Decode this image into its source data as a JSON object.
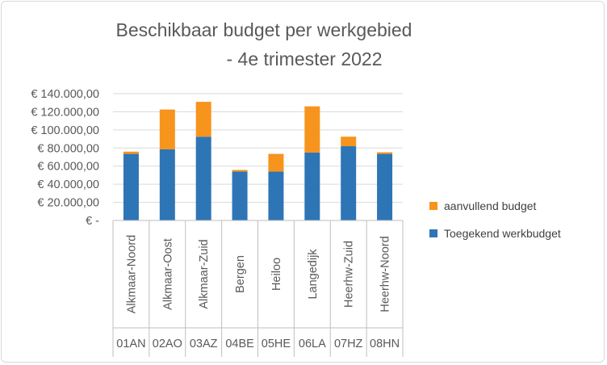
{
  "chart_data": {
    "type": "bar",
    "stacked": true,
    "title_line1": "Beschikbaar budget per werkgebied",
    "title_line2": "- 4e trimester 2022",
    "categories": [
      {
        "name": "Alkmaar-Noord",
        "code": "01AN"
      },
      {
        "name": "Alkmaar-Oost",
        "code": "02AO"
      },
      {
        "name": "Alkmaar-Zuid",
        "code": "03AZ"
      },
      {
        "name": "Bergen",
        "code": "04BE"
      },
      {
        "name": "Heiloo",
        "code": "05HE"
      },
      {
        "name": "Langedijk",
        "code": "06LA"
      },
      {
        "name": "Heerhw-Zuid",
        "code": "07HZ"
      },
      {
        "name": "Heerhw-Noord",
        "code": "08HN"
      }
    ],
    "series": [
      {
        "name": "Toegekend werkbudget",
        "color": "#2e75b6",
        "values": [
          73500,
          78500,
          92500,
          54000,
          54000,
          75000,
          82000,
          73500
        ]
      },
      {
        "name": "aanvullend budget",
        "color": "#f7941d",
        "values": [
          2500,
          44000,
          38500,
          1800,
          19500,
          51000,
          10500,
          1800
        ]
      }
    ],
    "ylim": [
      0,
      140000
    ],
    "yticks": [
      0,
      20000,
      40000,
      60000,
      80000,
      100000,
      120000,
      140000
    ],
    "ytick_labels": [
      "€ -",
      "€ 20.000,00",
      "€ 40.000,00",
      "€ 60.000,00",
      "€ 80.000,00",
      "€ 100.000,00",
      "€ 120.000,00",
      "€ 140.000,00"
    ],
    "grid": true,
    "legend_position": "right",
    "legend_order": [
      "aanvullend budget",
      "Toegekend werkbudget"
    ]
  }
}
